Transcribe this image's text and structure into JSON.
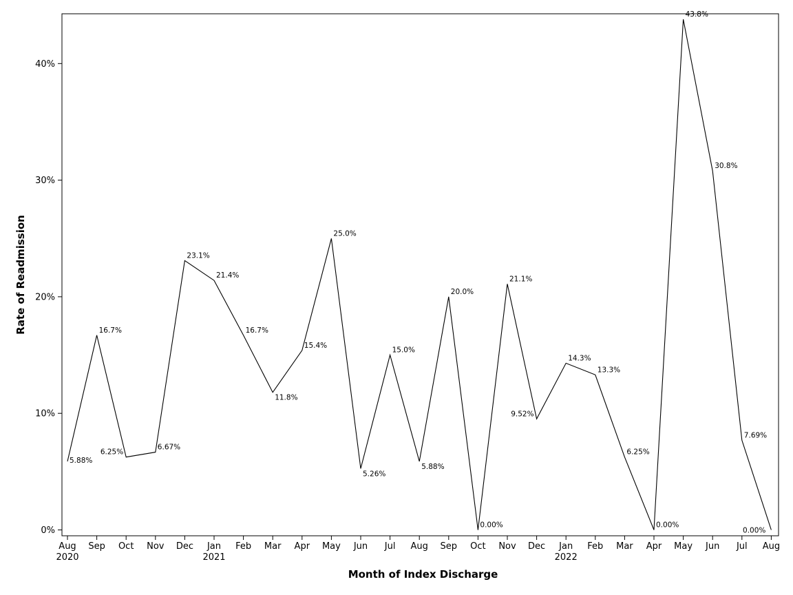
{
  "chart_data": {
    "type": "line",
    "xlabel": "Month of Index Discharge",
    "ylabel": "Rate of Readmission",
    "ylim": [
      0,
      44
    ],
    "yticks": [
      0,
      10,
      20,
      30,
      40
    ],
    "ytick_labels": [
      "0%",
      "10%",
      "20%",
      "30%",
      "40%"
    ],
    "grid": false,
    "categories": [
      "Aug",
      "Sep",
      "Oct",
      "Nov",
      "Dec",
      "Jan",
      "Feb",
      "Mar",
      "Apr",
      "May",
      "Jun",
      "Jul",
      "Aug",
      "Sep",
      "Oct",
      "Nov",
      "Dec",
      "Jan",
      "Feb",
      "Mar",
      "Apr",
      "May",
      "Jun",
      "Jul",
      "Aug"
    ],
    "year_labels": {
      "0": "2020",
      "5": "2021",
      "17": "2022"
    },
    "values": [
      5.88,
      16.7,
      6.25,
      6.67,
      23.1,
      21.4,
      16.7,
      11.8,
      15.4,
      25.0,
      5.26,
      15.0,
      5.88,
      20.0,
      0.0,
      21.1,
      9.52,
      14.3,
      13.3,
      6.25,
      0.0,
      43.8,
      30.8,
      7.69,
      0.0
    ],
    "data_labels": [
      "5.88%",
      "16.7%",
      "6.25%",
      "6.67%",
      "23.1%",
      "21.4%",
      "16.7%",
      "11.8%",
      "15.4%",
      "25.0%",
      "5.26%",
      "15.0%",
      "5.88%",
      "20.0%",
      "0.00%",
      "21.1%",
      "9.52%",
      "14.3%",
      "13.3%",
      "6.25%",
      "0.00%",
      "43.8%",
      "30.8%",
      "7.69%",
      "0.00%"
    ],
    "line_color": "#000000"
  }
}
